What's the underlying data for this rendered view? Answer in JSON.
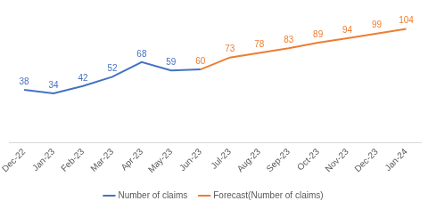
{
  "chart_data": {
    "type": "line",
    "categories": [
      "Dec-22",
      "Jan-23",
      "Feb-23",
      "Mar-23",
      "Apr-23",
      "May-23",
      "Jun-23",
      "Jul-23",
      "Aug-23",
      "Sep-23",
      "Oct-23",
      "Nov-23",
      "Dec-23",
      "Jan-24"
    ],
    "series": [
      {
        "name": "Number of claims",
        "color": "#4472c4",
        "values": [
          38,
          34,
          42,
          52,
          68,
          59,
          60,
          null,
          null,
          null,
          null,
          null,
          null,
          null
        ],
        "value_labels": [
          "38",
          "34",
          "42",
          "52",
          "68",
          "59",
          null,
          null,
          null,
          null,
          null,
          null,
          null,
          null
        ]
      },
      {
        "name": "Forecast(Number of claims)",
        "color": "#ed7d31",
        "values": [
          null,
          null,
          null,
          null,
          null,
          null,
          60,
          73,
          78,
          83,
          89,
          94,
          99,
          104
        ]
      }
    ],
    "ylim": [
      -20,
      120
    ],
    "grid": false,
    "legend": "bottom",
    "data_labels": true,
    "tick_labels": "x"
  }
}
